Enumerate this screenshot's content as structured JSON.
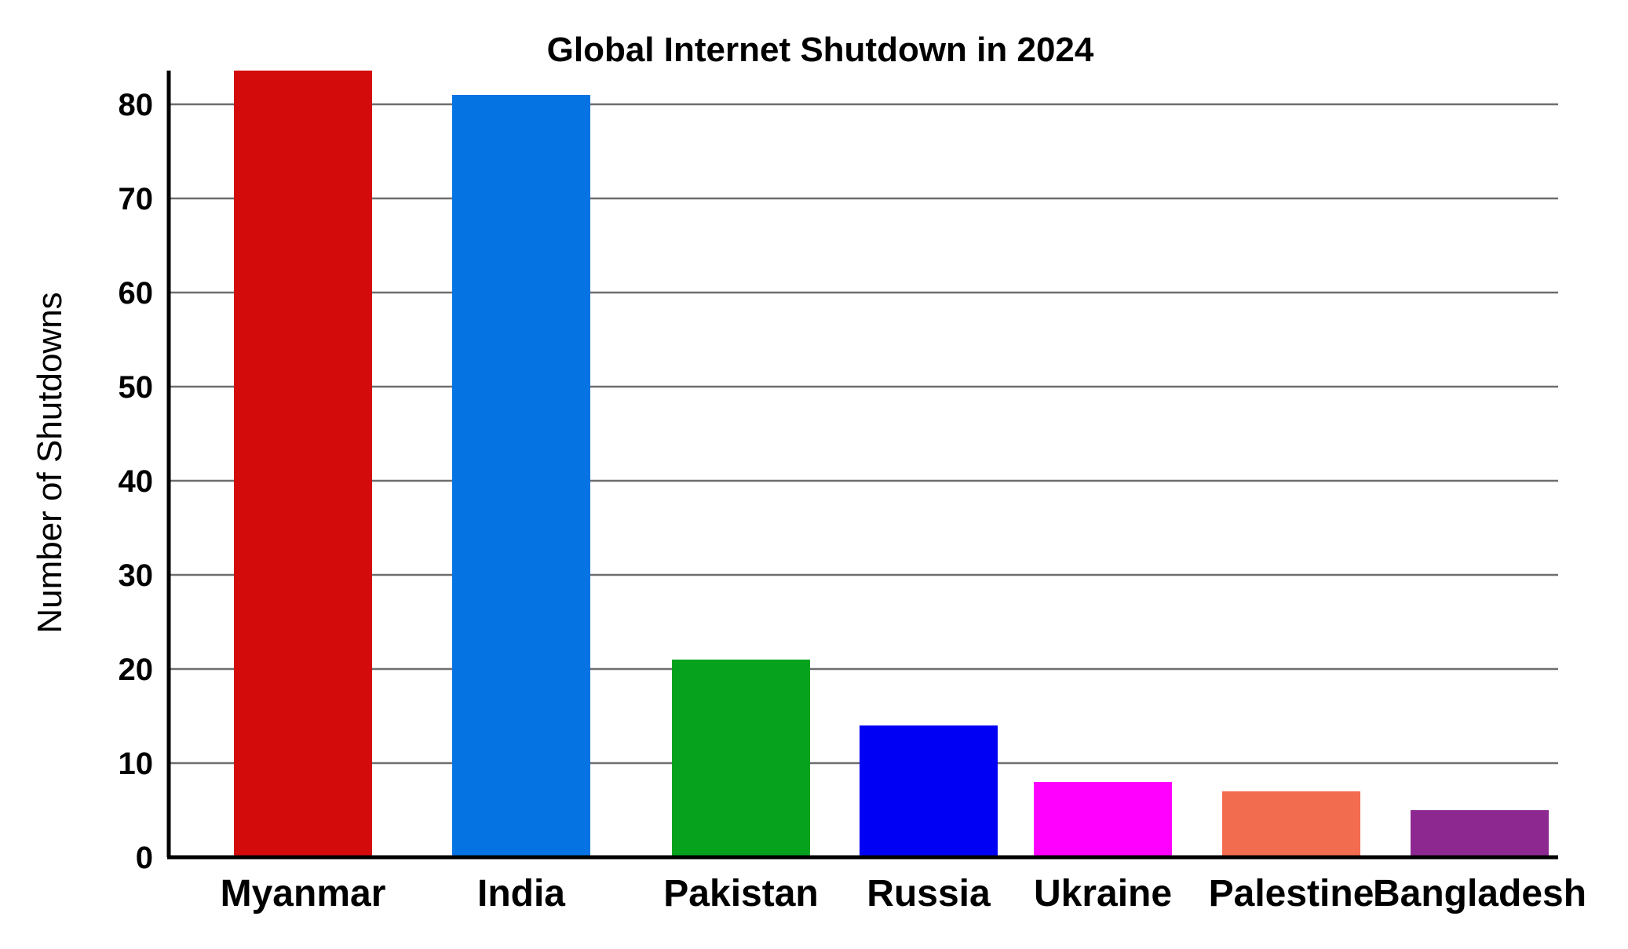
{
  "chart_data": {
    "type": "bar",
    "title": "Global Internet Shutdown in 2024",
    "xlabel": "",
    "ylabel": "Number of Shutdowns",
    "categories": [
      "Myanmar",
      "India",
      "Pakistan",
      "Russia",
      "Ukraine",
      "Palestine",
      "Bangladesh"
    ],
    "values": [
      85,
      81,
      21,
      14,
      8,
      7,
      5
    ],
    "colors": [
      "#d40b0b",
      "#0673e3",
      "#06a21e",
      "#0000f5",
      "#ff00ff",
      "#f26c4f",
      "#8e2891"
    ],
    "yticks": [
      0,
      10,
      20,
      30,
      40,
      50,
      60,
      70,
      80
    ],
    "ylim": [
      0,
      84
    ],
    "grid": true,
    "legend": "none"
  }
}
